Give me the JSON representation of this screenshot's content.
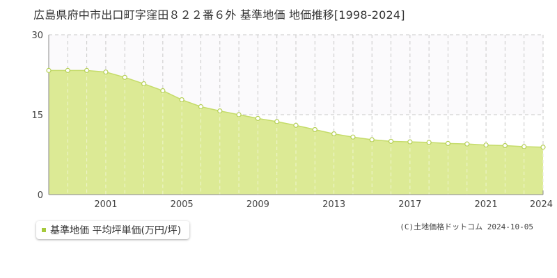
{
  "title": "広島県府中市出口町字窪田８２２番６外 基準地価 地価推移[1998-2024]",
  "legend": {
    "label": "基準地価 平均坪単価(万円/坪)"
  },
  "copyright": "(C)土地価格ドットコム 2024-10-05",
  "colors": {
    "fill": "#dcea95",
    "line": "#c5dc6a",
    "marker_stroke": "#b5cf55",
    "marker_fill": "#ffffff",
    "legend_swatch": "#a5c93b",
    "upper_band": "#fbfafc",
    "grid": "#c8c8c8",
    "axis": "#888888"
  },
  "chart_data": {
    "type": "area",
    "title": "広島県府中市出口町字窪田８２２番６外 基準地価 地価推移[1998-2024]",
    "xlabel": "",
    "ylabel": "",
    "x": [
      1998,
      1999,
      2000,
      2001,
      2002,
      2003,
      2004,
      2005,
      2006,
      2007,
      2008,
      2009,
      2010,
      2011,
      2012,
      2013,
      2014,
      2015,
      2016,
      2017,
      2018,
      2019,
      2020,
      2021,
      2022,
      2023,
      2024
    ],
    "series": [
      {
        "name": "基準地価 平均坪単価(万円/坪)",
        "values": [
          23.3,
          23.3,
          23.3,
          23.0,
          22.0,
          20.8,
          19.5,
          17.8,
          16.5,
          15.7,
          15.0,
          14.3,
          13.7,
          13.0,
          12.2,
          11.4,
          10.8,
          10.3,
          10.0,
          9.9,
          9.8,
          9.6,
          9.5,
          9.3,
          9.2,
          9.0,
          8.9
        ]
      }
    ],
    "xticks": [
      2001,
      2005,
      2009,
      2013,
      2017,
      2021,
      2024
    ],
    "yticks": [
      0,
      15,
      30
    ],
    "xlim": [
      1998,
      2024
    ],
    "ylim": [
      0,
      30
    ],
    "grid": true,
    "legend_position": "bottom-left"
  }
}
